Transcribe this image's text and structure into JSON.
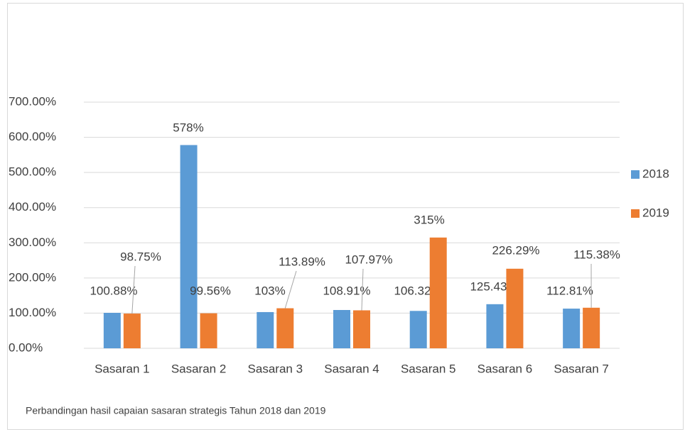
{
  "chart_data": {
    "type": "bar",
    "categories": [
      "Sasaran 1",
      "Sasaran 2",
      "Sasaran 3",
      "Sasaran 4",
      "Sasaran 5",
      "Sasaran 6",
      "Sasaran 7"
    ],
    "series": [
      {
        "name": "2018",
        "color": "#5b9bd5",
        "values": [
          100.88,
          578,
          103,
          108.91,
          106.32,
          125.43,
          112.81
        ],
        "value_labels": [
          "100.88%",
          "578%",
          "103%",
          "108.91%",
          "106.32%",
          "125.43%",
          "112.81%"
        ]
      },
      {
        "name": "2019",
        "color": "#ed7d31",
        "values": [
          98.75,
          99.56,
          113.89,
          107.97,
          315,
          226.29,
          115.38
        ],
        "value_labels": [
          "98.75%",
          "99.56%",
          "113.89%",
          "107.97%",
          "315%",
          "226.29%",
          "115.38%"
        ]
      }
    ],
    "ylim": [
      0,
      700
    ],
    "yticks": [
      {
        "value": 0,
        "label": "0.00%"
      },
      {
        "value": 100,
        "label": "100.00%"
      },
      {
        "value": 200,
        "label": "200.00%"
      },
      {
        "value": 300,
        "label": "300.00%"
      },
      {
        "value": 400,
        "label": "400.00%"
      },
      {
        "value": 500,
        "label": "500.00%"
      },
      {
        "value": 600,
        "label": "600.00%"
      },
      {
        "value": 700,
        "label": "700.00%"
      }
    ],
    "grid": true,
    "legend": "right",
    "caption": "Perbandingan hasil capaian sasaran strategis Tahun 2018 dan 2019"
  }
}
